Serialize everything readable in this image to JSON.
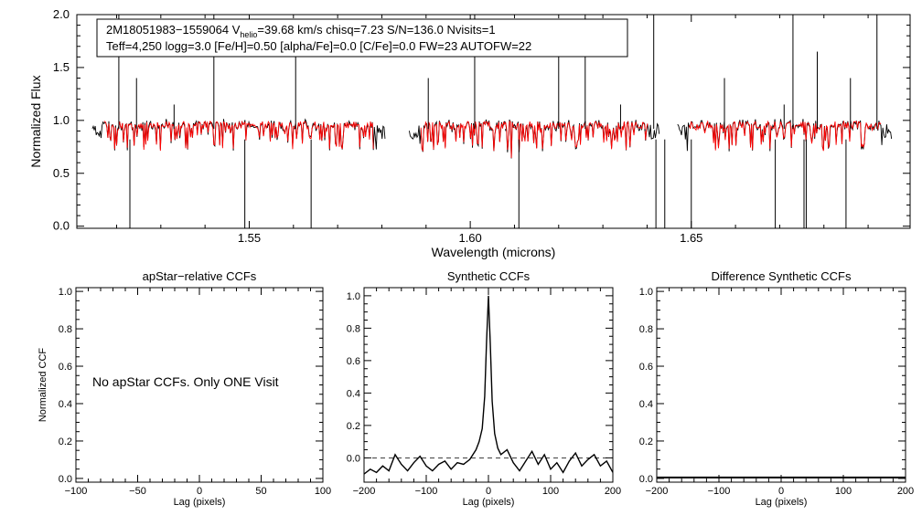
{
  "colors": {
    "observed": "#000000",
    "model": "#ff0000",
    "axes": "#000000",
    "background": "#ffffff"
  },
  "info_box": {
    "line1_a": "2M18051983−1559064  V",
    "line1_sub": "helio",
    "line1_b": "=39.68 km/s  chisq=7.23  S/N=136.0  Nvisits=1",
    "line2": "Teff=4,250 logg=3.0 [Fe/H]=0.50 [alpha/Fe]=0.0 [C/Fe]=0.0 FW=23 AUTOFW=22"
  },
  "chart_data": [
    {
      "id": "spectrum",
      "type": "line",
      "title": "",
      "xlabel": "Wavelength (microns)",
      "ylabel": "Normalized Flux",
      "xlim": [
        1.511,
        1.6995
      ],
      "ylim": [
        -0.02,
        2.0
      ],
      "xticks": [
        1.55,
        1.6,
        1.65
      ],
      "xtick_labels": [
        "1.55",
        "1.60",
        "1.65"
      ],
      "yticks": [
        0.0,
        0.5,
        1.0,
        1.5,
        2.0
      ],
      "ytick_labels": [
        "0.0",
        "0.5",
        "1.0",
        "1.5",
        "2.0"
      ],
      "chips": [
        [
          1.5145,
          1.5808
        ],
        [
          1.5862,
          1.6428
        ],
        [
          1.6469,
          1.6955
        ]
      ],
      "baseline": 0.92,
      "series": [
        {
          "name": "observed spectrum",
          "color": "#000000"
        },
        {
          "name": "best-fit model",
          "color": "#ff0000"
        }
      ],
      "spikes_up": [
        1.5205,
        1.5245,
        1.533,
        1.542,
        1.5605,
        1.5905,
        1.601,
        1.608,
        1.62,
        1.626,
        1.634,
        1.6395,
        1.6415,
        1.6575,
        1.671,
        1.673,
        1.6785,
        1.686,
        1.692
      ],
      "spikes_down": [
        1.523,
        1.549,
        1.564,
        1.611,
        1.642,
        1.644,
        1.65,
        1.669,
        1.6755,
        1.676,
        1.685
      ]
    },
    {
      "id": "apstar_ccf",
      "type": "line",
      "title": "apStar−relative CCFs",
      "xlabel": "Lag (pixels)",
      "ylabel": "Normalized CCF",
      "xlim": [
        -100,
        100
      ],
      "ylim": [
        -0.02,
        1.02
      ],
      "xticks": [
        -100,
        -50,
        0,
        50,
        100
      ],
      "xtick_labels": [
        "−100",
        "−50",
        "0",
        "50",
        "100"
      ],
      "yticks": [
        0.0,
        0.2,
        0.4,
        0.6,
        0.8,
        1.0
      ],
      "ytick_labels": [
        "0.0",
        "0.2",
        "0.4",
        "0.6",
        "0.8",
        "1.0"
      ],
      "annotation": "No apStar CCFs.  Only ONE Visit",
      "series": []
    },
    {
      "id": "synthetic_ccf",
      "type": "line",
      "title": "Synthetic CCFs",
      "xlabel": "Lag (pixels)",
      "ylabel": "",
      "xlim": [
        -200,
        200
      ],
      "ylim": [
        -0.15,
        1.05
      ],
      "xticks": [
        -200,
        -100,
        0,
        100,
        200
      ],
      "xtick_labels": [
        "−200",
        "−100",
        "0",
        "100",
        "200"
      ],
      "yticks": [
        0.0,
        0.2,
        0.4,
        0.6,
        0.8,
        1.0
      ],
      "ytick_labels": [
        "0.0",
        "0.2",
        "0.4",
        "0.6",
        "0.8",
        "1.0"
      ],
      "peak_lag": 0,
      "peak_value": 1.0,
      "zero_line": "dashed at 0.0",
      "series": [
        {
          "name": "CCF",
          "color": "#000000",
          "x": [
            -200,
            -190,
            -180,
            -170,
            -160,
            -150,
            -140,
            -130,
            -120,
            -110,
            -100,
            -90,
            -80,
            -70,
            -60,
            -50,
            -40,
            -30,
            -20,
            -15,
            -10,
            -6,
            -3,
            0,
            3,
            6,
            10,
            15,
            20,
            30,
            40,
            50,
            60,
            70,
            80,
            90,
            100,
            110,
            120,
            130,
            140,
            150,
            160,
            170,
            180,
            190,
            200
          ],
          "y": [
            -0.1,
            -0.07,
            -0.09,
            -0.05,
            -0.08,
            0.02,
            -0.04,
            -0.08,
            -0.03,
            0.01,
            -0.05,
            -0.08,
            -0.04,
            -0.02,
            -0.07,
            -0.03,
            -0.04,
            -0.01,
            0.05,
            0.1,
            0.18,
            0.38,
            0.72,
            1.0,
            0.7,
            0.35,
            0.15,
            0.06,
            0.02,
            0.05,
            -0.03,
            -0.08,
            -0.02,
            0.04,
            -0.04,
            0.02,
            -0.07,
            -0.03,
            -0.09,
            -0.02,
            0.03,
            -0.05,
            -0.01,
            0.02,
            -0.05,
            -0.02,
            -0.09
          ]
        }
      ]
    },
    {
      "id": "difference_ccf",
      "type": "line",
      "title": "Difference Synthetic CCFs",
      "xlabel": "Lag (pixels)",
      "ylabel": "",
      "xlim": [
        -200,
        200
      ],
      "ylim": [
        -0.02,
        1.02
      ],
      "xticks": [
        -200,
        -100,
        0,
        100,
        200
      ],
      "xtick_labels": [
        "−200",
        "−100",
        "0",
        "100",
        "200"
      ],
      "yticks": [
        0.0,
        0.2,
        0.4,
        0.6,
        0.8,
        1.0
      ],
      "ytick_labels": [
        "0.0",
        "0.2",
        "0.4",
        "0.6",
        "0.8",
        "1.0"
      ],
      "series": [
        {
          "name": "difference",
          "color": "#000000",
          "x": [
            -200,
            200
          ],
          "y": [
            0.0,
            0.0
          ]
        }
      ]
    }
  ]
}
